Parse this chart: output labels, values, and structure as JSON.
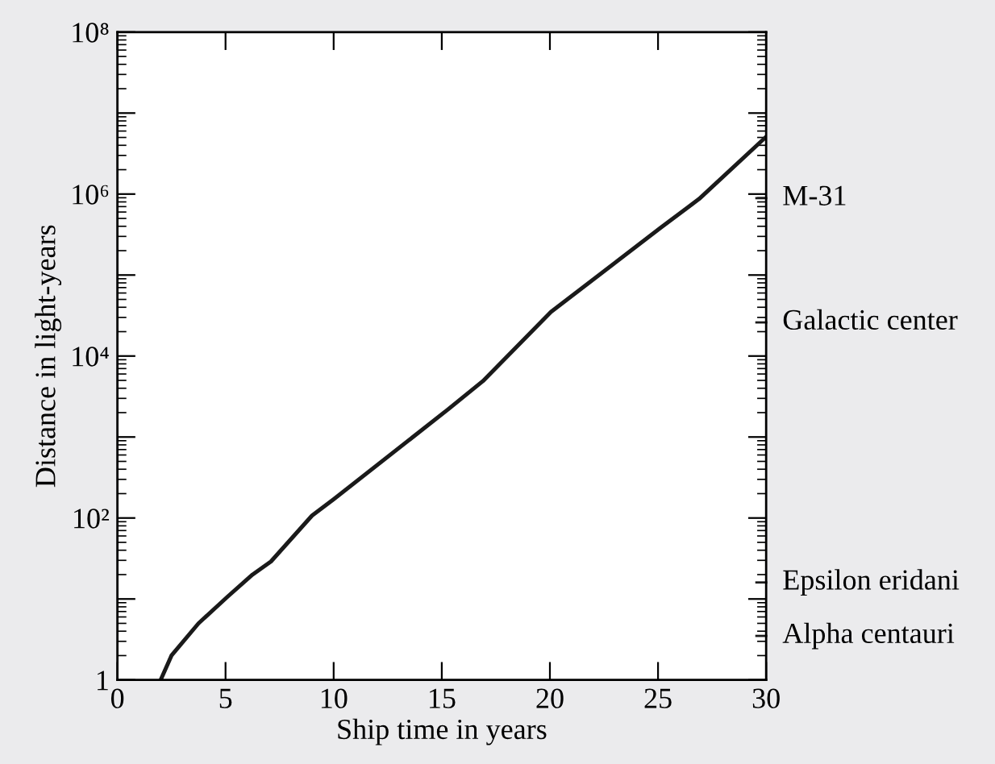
{
  "chart_data": {
    "type": "line",
    "xlabel": "Ship time in years",
    "ylabel": "Distance in light-years",
    "log": "y",
    "x": [
      2.0,
      2.5,
      3.75,
      5.1,
      6.25,
      7.1,
      9.0,
      10.0,
      15.2,
      16.9,
      20.05,
      25.1,
      26.9,
      30.0
    ],
    "series": [
      {
        "color": "#1a1a1a",
        "values": [
          1,
          2,
          5,
          10.7,
          20,
          29,
          107,
          170,
          2100,
          4900,
          35000,
          380000,
          870000,
          5100000
        ]
      }
    ],
    "xlim": [
      0,
      30
    ],
    "xticks": [
      0,
      5,
      10,
      15,
      20,
      25,
      30
    ],
    "ylim": [
      1,
      100000000
    ],
    "yticks": [
      {
        "value": 1,
        "label": "1"
      },
      {
        "value": 10,
        "label": null
      },
      {
        "value": 100,
        "label": "10²"
      },
      {
        "value": 1000,
        "label": null
      },
      {
        "value": 10000,
        "label": "10⁴"
      },
      {
        "value": 100000,
        "label": null
      },
      {
        "value": 1000000,
        "label": "10⁶"
      },
      {
        "value": 10000000,
        "label": null
      },
      {
        "value": 100000000,
        "label": "10⁸"
      }
    ],
    "ref_lines": [
      {
        "axis": "y",
        "value": 890000,
        "label": "M-31",
        "color": "#1a1a1a"
      },
      {
        "axis": "y",
        "value": 26000,
        "label": "Galactic center",
        "color": "#1a1a1a"
      },
      {
        "axis": "y",
        "value": 16,
        "label": "Epsilon eridani",
        "color": "#1a1a1a"
      },
      {
        "axis": "y",
        "value": 3.5,
        "label": "Alpha centauri",
        "color": "#1a1a1a"
      }
    ],
    "grid": false,
    "legend": false,
    "marker": "none",
    "line_style": "solid"
  }
}
